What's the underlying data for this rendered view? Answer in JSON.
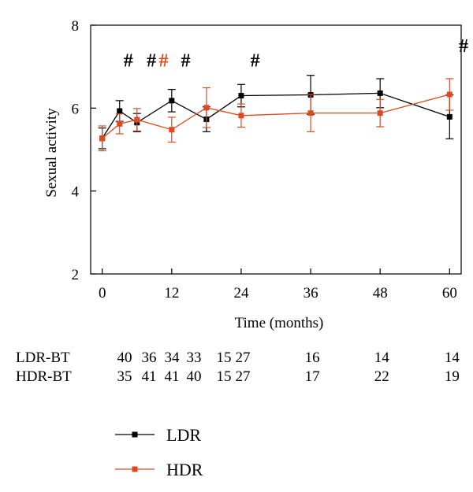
{
  "chart_data": {
    "type": "line",
    "title": "",
    "xlabel": "Time (months)",
    "ylabel": "Sexual activity",
    "xlim": [
      -2,
      62
    ],
    "ylim": [
      2,
      8
    ],
    "x_ticks": [
      0,
      12,
      24,
      36,
      48,
      60
    ],
    "y_ticks": [
      2,
      4,
      6,
      8
    ],
    "grid": false,
    "legend_position": "bottom-left",
    "series": [
      {
        "name": "LDR",
        "color": "#000000",
        "x": [
          0,
          3,
          6,
          12,
          18,
          24,
          36,
          48,
          60
        ],
        "y": [
          5.27,
          5.93,
          5.65,
          6.18,
          5.73,
          6.3,
          6.32,
          6.36,
          5.79
        ],
        "error": [
          0.25,
          0.25,
          0.22,
          0.27,
          0.3,
          0.27,
          0.47,
          0.35,
          0.53
        ]
      },
      {
        "name": "HDR",
        "color": "#dd4a22",
        "x": [
          0,
          3,
          6,
          12,
          18,
          24,
          36,
          48,
          60
        ],
        "y": [
          5.27,
          5.62,
          5.72,
          5.48,
          6.01,
          5.82,
          5.88,
          5.88,
          6.33
        ],
        "error": [
          0.3,
          0.24,
          0.27,
          0.3,
          0.48,
          0.28,
          0.45,
          0.33,
          0.38
        ]
      }
    ],
    "annotations": [
      {
        "text": "#",
        "x": 4.5,
        "y": 7.0,
        "color": "#000000"
      },
      {
        "text": "#",
        "x": 8.5,
        "y": 7.0,
        "color": "#000000"
      },
      {
        "text": "#",
        "x": 10.6,
        "y": 7.0,
        "color": "#dd4a22"
      },
      {
        "text": "#",
        "x": 14.4,
        "y": 7.0,
        "color": "#000000"
      },
      {
        "text": "#",
        "x": 26.4,
        "y": 7.0,
        "color": "#000000"
      },
      {
        "text": "#",
        "x": 62.4,
        "y": 7.35,
        "color": "#000000"
      }
    ],
    "table": {
      "rows": [
        {
          "label": "LDR-BT",
          "values": [
            "40",
            "36",
            "34",
            "33",
            "15",
            "27",
            "16",
            "14",
            "14"
          ]
        },
        {
          "label": "HDR-BT",
          "values": [
            "35",
            "41",
            "41",
            "40",
            "15",
            "27",
            "17",
            "22",
            "19"
          ]
        }
      ]
    }
  }
}
